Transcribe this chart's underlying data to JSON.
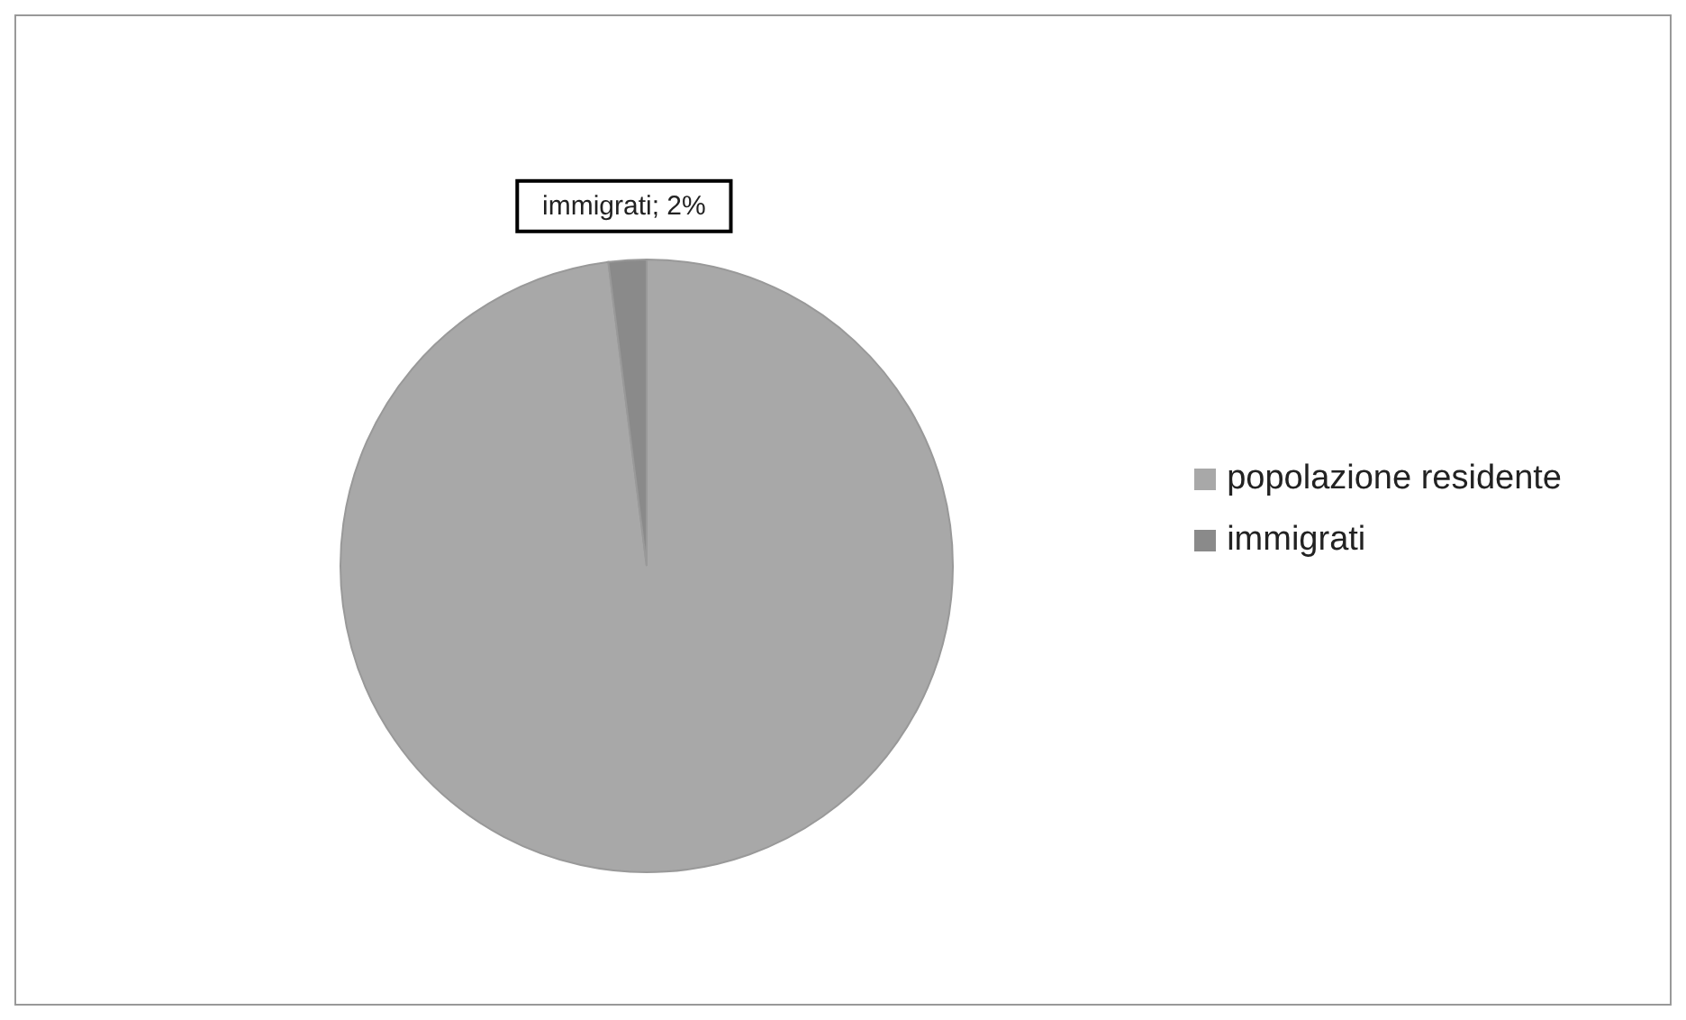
{
  "chart_data": {
    "type": "pie",
    "categories": [
      "popolazione residente",
      "immigrati"
    ],
    "values": [
      98,
      2
    ],
    "colors": [
      "#a8a8a8",
      "#8a8a8a"
    ],
    "value_labels": [
      null,
      "immigrati; 2%"
    ],
    "legend": "right"
  }
}
